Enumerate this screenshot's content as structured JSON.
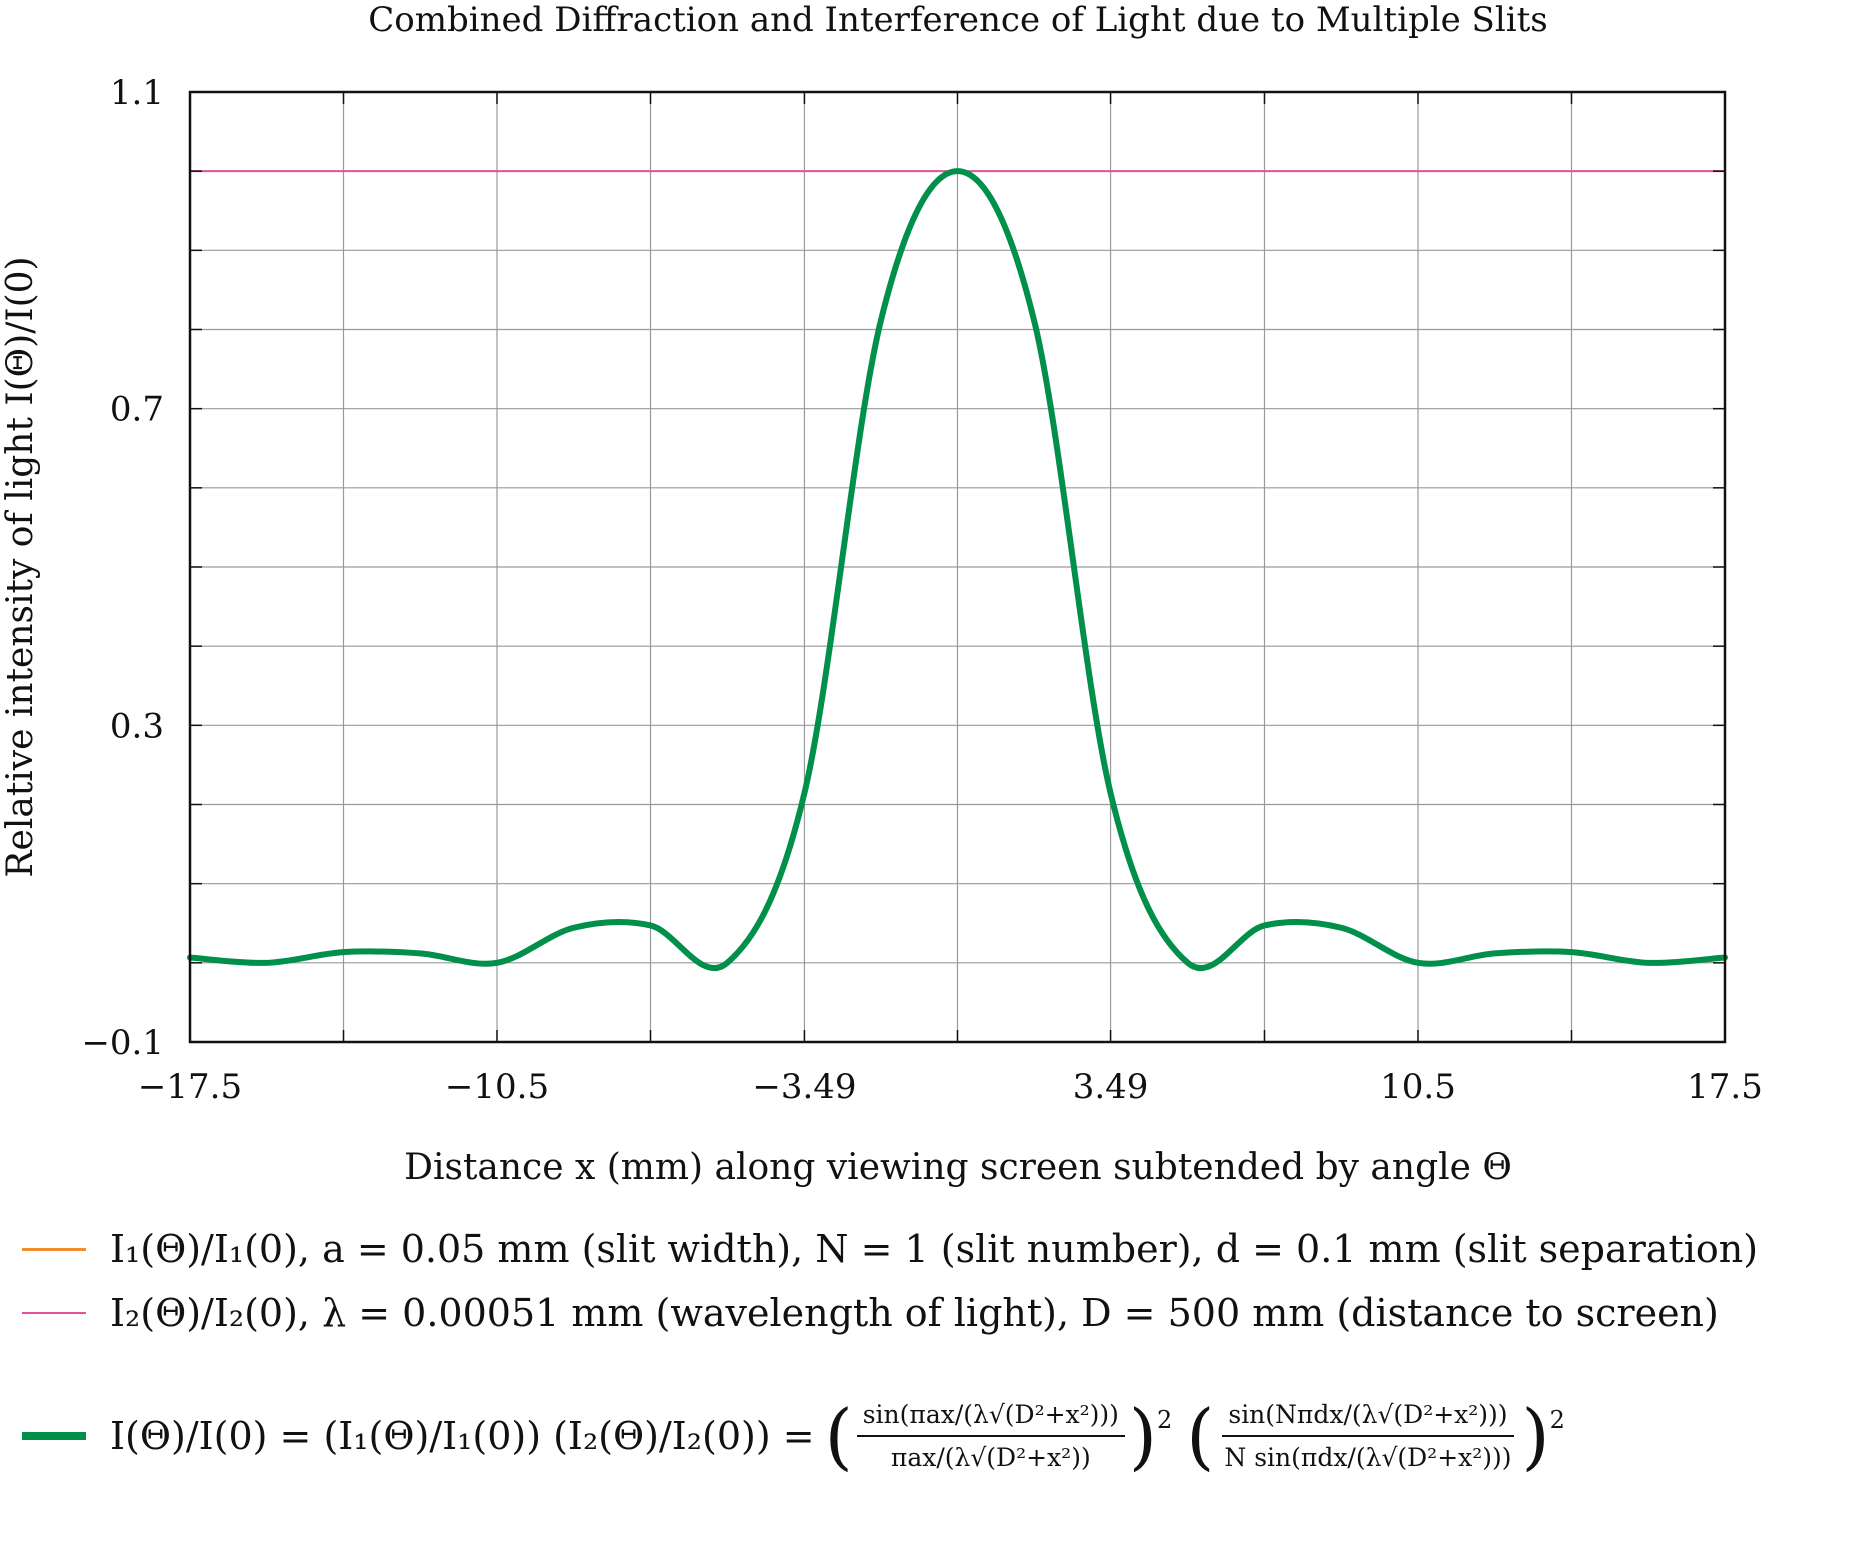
{
  "chart_data": {
    "type": "line",
    "title": "Combined Diffraction and Interference of Light due to Multiple Slits",
    "xlabel": "Distance x (mm) along viewing screen subtended by angle Θ",
    "ylabel": "Relative intensity of light I(Θ)/I(0)",
    "xlim": [
      -17.5,
      17.5
    ],
    "ylim": [
      -0.1,
      1.1
    ],
    "xticks": [
      -17.5,
      -14,
      -10.5,
      -7,
      -3.49,
      0,
      3.49,
      7,
      10.5,
      14,
      17.5
    ],
    "xtick_labels": [
      "−17.5",
      "",
      "−10.5",
      "",
      "−3.49",
      "",
      "3.49",
      "",
      "10.5",
      "",
      "17.5"
    ],
    "yticks": [
      -0.1,
      0,
      0.1,
      0.2,
      0.3,
      0.4,
      0.5,
      0.6,
      0.7,
      0.8,
      0.9,
      1.0,
      1.1
    ],
    "ytick_labels": [
      "−0.1",
      "",
      "",
      "",
      "0.3",
      "",
      "",
      "",
      "0.7",
      "",
      "",
      "",
      "1.1"
    ],
    "grid": true,
    "params": {
      "a": 0.05,
      "N": 1,
      "d": 0.1,
      "lambda": 0.00051,
      "D": 500
    },
    "series": [
      {
        "name": "I₁(Θ)/I₁(0)",
        "color": "#f28e2b",
        "x": [
          -17.5,
          -15.75,
          -14,
          -12.25,
          -10.5,
          -8.75,
          -7,
          -5.25,
          -3.49,
          -1.75,
          0,
          1.75,
          3.49,
          5.25,
          7,
          8.75,
          10.5,
          12.25,
          14,
          15.75,
          17.5
        ],
        "y": [
          0.0067,
          0,
          0.0135,
          0.0119,
          0,
          0.0443,
          0.0472,
          0,
          0.2144,
          0.8106,
          1.0,
          0.8106,
          0.2144,
          0,
          0.0472,
          0.0443,
          0,
          0.0119,
          0.0135,
          0,
          0.0067
        ]
      },
      {
        "name": "I₂(Θ)/I₂(0)",
        "color": "#e0529c",
        "x": [
          -17.5,
          17.5
        ],
        "y": [
          1.0,
          1.0
        ]
      },
      {
        "name": "I(Θ)/I(0)",
        "color": "#00904a",
        "x": [
          -17.5,
          -15.75,
          -14,
          -12.25,
          -10.5,
          -8.75,
          -7,
          -5.25,
          -3.49,
          -1.75,
          0,
          1.75,
          3.49,
          5.25,
          7,
          8.75,
          10.5,
          12.25,
          14,
          15.75,
          17.5
        ],
        "y": [
          0.0067,
          0,
          0.0135,
          0.0119,
          0,
          0.0443,
          0.0472,
          0,
          0.2144,
          0.8106,
          1.0,
          0.8106,
          0.2144,
          0,
          0.0472,
          0.0443,
          0,
          0.0119,
          0.0135,
          0,
          0.0067
        ]
      }
    ]
  },
  "legend": {
    "item1": {
      "label": "I₁(Θ)/I₁(0), a = 0.05 mm (slit width), N = 1 (slit number), d = 0.1 mm (slit separation)",
      "color": "#f28e2b"
    },
    "item2": {
      "label": "I₂(Θ)/I₂(0), λ = 0.00051 mm (wavelength of light), D = 500 mm (distance to screen)",
      "color": "#e0529c"
    },
    "item3": {
      "color": "#00904a",
      "lhs": "I(Θ)/I(0) = (I₁(Θ)/I₁(0)) (I₂(Θ)/I₂(0)) =",
      "frac1_num": "sin(πax/(λ√(D²+x²)))",
      "frac1_den": "πax/(λ√(D²+x²))",
      "frac2_num": "sin(Nπdx/(λ√(D²+x²)))",
      "frac2_den": "N sin(πdx/(λ√(D²+x²)))",
      "exponent": "2"
    }
  }
}
